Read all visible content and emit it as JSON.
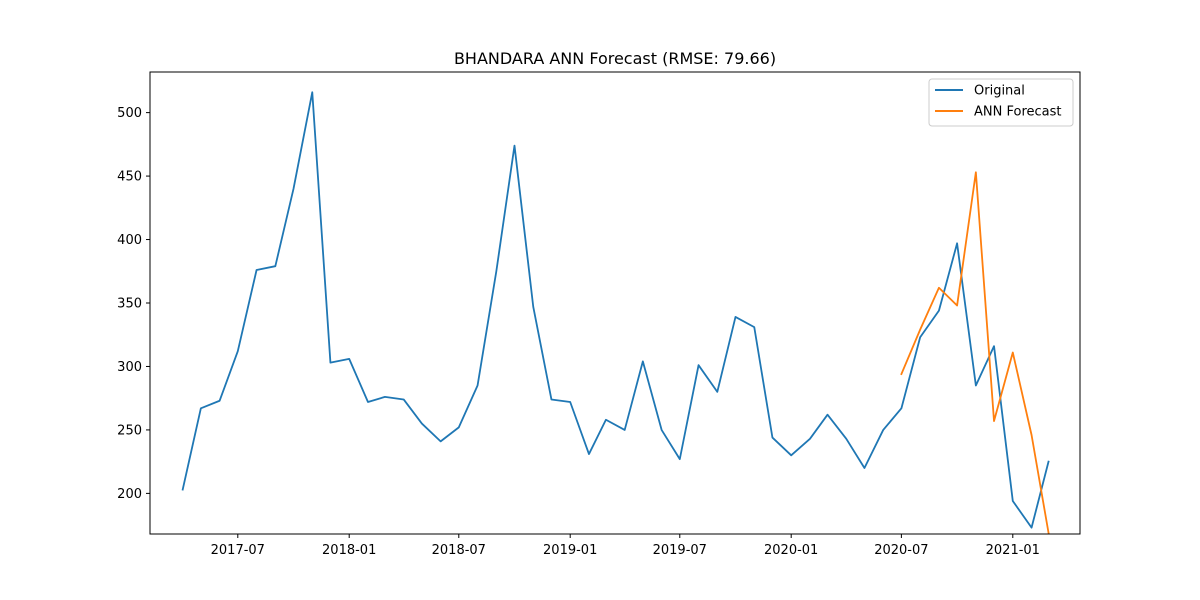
{
  "chart_data": {
    "type": "line",
    "title": "BHANDARA ANN Forecast (RMSE: 79.66)",
    "xlabel": "",
    "ylabel": "",
    "x_tick_labels": [
      "2017-07",
      "2018-01",
      "2018-07",
      "2019-01",
      "2019-07",
      "2020-01",
      "2020-07",
      "2021-01"
    ],
    "y_tick_labels": [
      "200",
      "250",
      "300",
      "350",
      "400",
      "450",
      "500"
    ],
    "ylim": [
      168,
      532
    ],
    "xlim": [
      "2017-02-06",
      "2021-04-22"
    ],
    "grid": false,
    "legend_position": "top-right",
    "series": [
      {
        "name": "Original",
        "color": "#1f77b4",
        "points": [
          [
            "2017-04",
            203
          ],
          [
            "2017-05",
            267
          ],
          [
            "2017-06",
            273
          ],
          [
            "2017-07",
            312
          ],
          [
            "2017-08",
            376
          ],
          [
            "2017-09",
            379
          ],
          [
            "2017-10",
            440
          ],
          [
            "2017-11",
            516
          ],
          [
            "2017-12",
            303
          ],
          [
            "2018-01",
            306
          ],
          [
            "2018-02",
            272
          ],
          [
            "2018-03",
            276
          ],
          [
            "2018-04",
            274
          ],
          [
            "2018-05",
            255
          ],
          [
            "2018-06",
            241
          ],
          [
            "2018-07",
            252
          ],
          [
            "2018-08",
            285
          ],
          [
            "2018-09",
            375
          ],
          [
            "2018-10",
            474
          ],
          [
            "2018-11",
            347
          ],
          [
            "2018-12",
            274
          ],
          [
            "2019-01",
            272
          ],
          [
            "2019-02",
            231
          ],
          [
            "2019-03",
            258
          ],
          [
            "2019-04",
            250
          ],
          [
            "2019-05",
            304
          ],
          [
            "2019-06",
            250
          ],
          [
            "2019-07",
            227
          ],
          [
            "2019-08",
            301
          ],
          [
            "2019-09",
            280
          ],
          [
            "2019-10",
            339
          ],
          [
            "2019-11",
            331
          ],
          [
            "2019-12",
            244
          ],
          [
            "2020-01",
            230
          ],
          [
            "2020-02",
            243
          ],
          [
            "2020-03",
            262
          ],
          [
            "2020-04",
            243
          ],
          [
            "2020-05",
            220
          ],
          [
            "2020-06",
            250
          ],
          [
            "2020-07",
            267
          ],
          [
            "2020-08",
            323
          ],
          [
            "2020-09",
            344
          ],
          [
            "2020-10",
            397
          ],
          [
            "2020-11",
            285
          ],
          [
            "2020-12",
            316
          ],
          [
            "2021-01",
            194
          ],
          [
            "2021-02",
            173
          ],
          [
            "2021-03",
            225
          ]
        ]
      },
      {
        "name": "ANN Forecast",
        "color": "#ff7f0e",
        "points": [
          [
            "2020-07",
            294
          ],
          [
            "2020-08",
            329
          ],
          [
            "2020-09",
            362
          ],
          [
            "2020-10",
            348
          ],
          [
            "2020-11",
            453
          ],
          [
            "2020-12",
            257
          ],
          [
            "2021-01",
            311
          ],
          [
            "2021-02",
            246
          ],
          [
            "2021-03",
            169
          ]
        ]
      }
    ]
  }
}
